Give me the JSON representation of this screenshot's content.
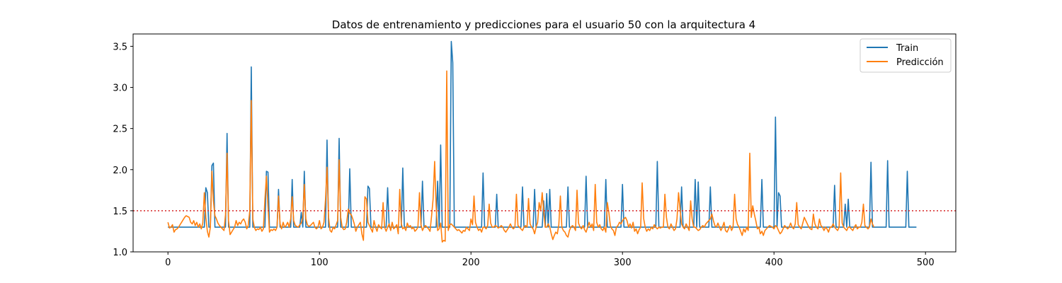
{
  "chart_data": {
    "type": "line",
    "title": "Datos de entrenamiento y predicciones para el usuario 50 con la arquitectura 4",
    "xlabel": "",
    "ylabel": "",
    "xlim": [
      -23,
      520
    ],
    "ylim": [
      1.0,
      3.65
    ],
    "xticks": [
      0,
      100,
      200,
      300,
      400,
      500
    ],
    "yticks": [
      1.0,
      1.5,
      2.0,
      2.5,
      3.0,
      3.5
    ],
    "xtick_labels": [
      "0",
      "100",
      "200",
      "300",
      "400",
      "500"
    ],
    "ytick_labels": [
      "1.0",
      "1.5",
      "2.0",
      "2.5",
      "3.0",
      "3.5"
    ],
    "threshold": {
      "y": 1.5,
      "color": "#d62728",
      "style": "dotted"
    },
    "legend": {
      "position": "top-right"
    },
    "series": [
      {
        "name": "Train",
        "color": "#1f77b4",
        "baseline": 1.3,
        "x_max": 494,
        "peaks": [
          [
            25,
            1.78
          ],
          [
            26,
            1.72
          ],
          [
            29,
            2.05
          ],
          [
            30,
            2.08
          ],
          [
            39,
            2.44
          ],
          [
            55,
            3.25
          ],
          [
            65,
            1.98
          ],
          [
            66,
            1.97
          ],
          [
            73,
            1.76
          ],
          [
            82,
            1.88
          ],
          [
            88,
            1.48
          ],
          [
            90,
            1.98
          ],
          [
            105,
            2.36
          ],
          [
            113,
            2.38
          ],
          [
            120,
            2.01
          ],
          [
            132,
            1.8
          ],
          [
            133,
            1.77
          ],
          [
            145,
            1.78
          ],
          [
            155,
            2.02
          ],
          [
            168,
            1.86
          ],
          [
            178,
            1.86
          ],
          [
            180,
            2.3
          ],
          [
            187,
            3.56
          ],
          [
            188,
            3.3
          ],
          [
            208,
            1.96
          ],
          [
            217,
            1.7
          ],
          [
            234,
            1.79
          ],
          [
            242,
            1.76
          ],
          [
            248,
            1.62
          ],
          [
            250,
            1.71
          ],
          [
            252,
            1.76
          ],
          [
            264,
            1.79
          ],
          [
            276,
            1.92
          ],
          [
            289,
            1.88
          ],
          [
            300,
            1.82
          ],
          [
            323,
            2.1
          ],
          [
            339,
            1.79
          ],
          [
            348,
            1.88
          ],
          [
            350,
            1.85
          ],
          [
            358,
            1.79
          ],
          [
            392,
            1.88
          ],
          [
            401,
            2.64
          ],
          [
            403,
            1.72
          ],
          [
            404,
            1.68
          ],
          [
            440,
            1.81
          ],
          [
            447,
            1.58
          ],
          [
            449,
            1.64
          ],
          [
            464,
            2.09
          ],
          [
            475,
            2.11
          ],
          [
            488,
            1.98
          ]
        ]
      },
      {
        "name": "Predicción",
        "color": "#ff7f0e",
        "y": [
          1.36,
          1.29,
          1.3,
          1.33,
          1.24,
          1.27,
          1.28,
          1.3,
          1.33,
          1.36,
          1.39,
          1.42,
          1.44,
          1.43,
          1.42,
          1.36,
          1.34,
          1.38,
          1.32,
          1.36,
          1.3,
          1.34,
          1.28,
          1.35,
          1.72,
          1.42,
          1.25,
          1.18,
          1.3,
          1.98,
          1.62,
          1.44,
          1.4,
          1.35,
          1.32,
          1.3,
          1.28,
          1.26,
          1.45,
          2.2,
          1.38,
          1.21,
          1.24,
          1.27,
          1.3,
          1.38,
          1.32,
          1.36,
          1.34,
          1.38,
          1.4,
          1.36,
          1.28,
          1.32,
          1.5,
          2.84,
          1.4,
          1.3,
          1.26,
          1.28,
          1.27,
          1.3,
          1.25,
          1.28,
          1.64,
          1.92,
          1.56,
          1.24,
          1.27,
          1.26,
          1.28,
          1.26,
          1.3,
          1.68,
          1.34,
          1.28,
          1.36,
          1.3,
          1.32,
          1.36,
          1.3,
          1.4,
          1.67,
          1.38,
          1.32,
          1.31,
          1.3,
          1.33,
          1.35,
          1.42,
          1.82,
          1.4,
          1.33,
          1.31,
          1.32,
          1.34,
          1.36,
          1.3,
          1.28,
          1.3,
          1.38,
          1.28,
          1.3,
          1.36,
          1.64,
          2.03,
          1.42,
          1.26,
          1.24,
          1.3,
          1.28,
          1.33,
          1.38,
          2.12,
          1.42,
          1.3,
          1.27,
          1.28,
          1.36,
          1.52,
          1.47,
          1.45,
          1.4,
          1.34,
          1.25,
          1.3,
          1.33,
          1.36,
          1.22,
          1.14,
          1.67,
          1.64,
          1.36,
          1.32,
          1.28,
          1.24,
          1.38,
          1.3,
          1.25,
          1.33,
          1.3,
          1.28,
          1.6,
          1.3,
          1.25,
          1.3,
          1.34,
          1.26,
          1.36,
          1.28,
          1.3,
          1.33,
          1.22,
          1.76,
          1.34,
          1.28,
          1.3,
          1.26,
          1.35,
          1.3,
          1.32,
          1.28,
          1.3,
          1.25,
          1.27,
          1.3,
          1.72,
          1.33,
          1.26,
          1.3,
          1.32,
          1.3,
          1.28,
          1.25,
          1.44,
          1.64,
          2.1,
          1.56,
          1.26,
          1.28,
          1.35,
          1.12,
          1.14,
          1.13,
          3.2,
          1.26,
          1.33,
          1.34,
          1.32,
          1.3,
          1.28,
          1.26,
          1.27,
          1.25,
          1.23,
          1.26,
          1.25,
          1.3,
          1.28,
          1.26,
          1.4,
          1.33,
          1.68,
          1.36,
          1.3,
          1.26,
          1.28,
          1.24,
          1.3,
          1.3,
          1.28,
          1.32,
          1.58,
          1.35,
          1.3,
          1.3,
          1.32,
          1.31,
          1.29,
          1.3,
          1.32,
          1.3,
          1.26,
          1.24,
          1.27,
          1.3,
          1.34,
          1.3,
          1.28,
          1.3,
          1.7,
          1.32,
          1.3,
          1.28,
          1.26,
          1.3,
          1.32,
          1.3,
          1.65,
          1.34,
          1.3,
          1.28,
          1.22,
          1.3,
          1.36,
          1.6,
          1.5,
          1.72,
          1.5,
          1.3,
          1.3,
          1.34,
          1.3,
          1.22,
          1.15,
          1.2,
          1.24,
          1.22,
          1.33,
          1.68,
          1.3,
          1.26,
          1.24,
          1.2,
          1.18,
          1.26,
          1.3,
          1.32,
          1.3,
          1.26,
          1.75,
          1.35,
          1.3,
          1.28,
          1.32,
          1.27,
          1.24,
          1.3,
          1.36,
          1.3,
          1.34,
          1.26,
          1.82,
          1.36,
          1.3,
          1.33,
          1.28,
          1.26,
          1.3,
          1.24,
          1.6,
          1.48,
          1.32,
          1.28,
          1.26,
          1.2,
          1.3,
          1.32,
          1.36,
          1.34,
          1.38,
          1.4,
          1.42,
          1.38,
          1.3,
          1.34,
          1.29,
          1.36,
          1.25,
          1.28,
          1.22,
          1.27,
          1.3,
          1.84,
          1.4,
          1.3,
          1.25,
          1.28,
          1.26,
          1.3,
          1.28,
          1.33,
          1.3,
          1.28,
          1.3,
          1.29,
          1.3,
          1.3,
          1.7,
          1.42,
          1.3,
          1.28,
          1.34,
          1.3,
          1.26,
          1.28,
          1.4,
          1.72,
          1.52,
          1.34,
          1.3,
          1.28,
          1.34,
          1.3,
          1.26,
          1.62,
          1.4,
          1.3,
          1.3,
          1.28,
          1.26,
          1.27,
          1.3,
          1.32,
          1.3,
          1.34,
          1.36,
          1.38,
          1.4,
          1.46,
          1.38,
          1.32,
          1.3,
          1.35,
          1.3,
          1.26,
          1.3,
          1.36,
          1.26,
          1.24,
          1.28,
          1.32,
          1.26,
          1.3,
          1.7,
          1.4,
          1.33,
          1.3,
          1.25,
          1.2,
          1.28,
          1.24,
          1.3,
          1.26,
          2.2,
          1.42,
          1.56,
          1.46,
          1.38,
          1.28,
          1.3,
          1.22,
          1.25,
          1.2,
          1.26,
          1.28,
          1.3,
          1.32,
          1.31,
          1.3,
          1.28,
          1.32,
          1.3,
          1.26,
          1.22,
          1.24,
          1.28,
          1.32,
          1.3,
          1.28,
          1.3,
          1.35,
          1.3,
          1.28,
          1.34,
          1.6,
          1.33,
          1.3,
          1.28,
          1.35,
          1.42,
          1.38,
          1.34,
          1.3,
          1.28,
          1.27,
          1.46,
          1.34,
          1.3,
          1.28,
          1.4,
          1.32,
          1.3,
          1.26,
          1.3,
          1.28,
          1.24,
          1.3,
          1.3,
          1.34,
          1.3,
          1.28,
          1.26,
          1.3,
          1.96,
          1.35,
          1.3,
          1.28,
          1.26,
          1.3,
          1.3,
          1.28,
          1.26,
          1.3,
          1.33,
          1.28,
          1.3,
          1.3,
          1.36,
          1.58,
          1.32,
          1.3,
          1.28,
          1.3,
          1.4,
          1.34,
          1.3
        ]
      }
    ]
  }
}
